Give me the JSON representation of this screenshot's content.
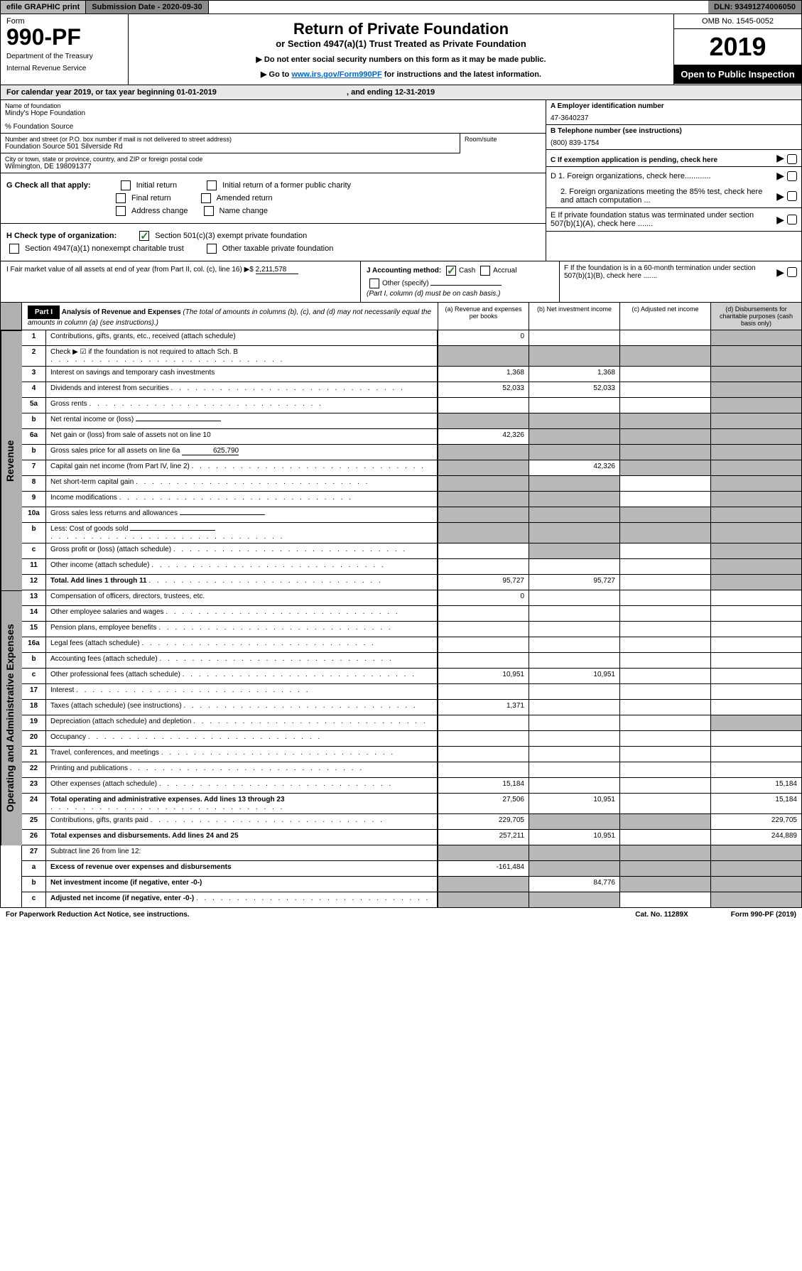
{
  "top_bar": {
    "efile": "efile GRAPHIC print",
    "submission": "Submission Date - 2020-09-30",
    "dln": "DLN: 93491274006050"
  },
  "header": {
    "form_word": "Form",
    "form_number": "990-PF",
    "dept": "Department of the Treasury",
    "irs": "Internal Revenue Service",
    "title": "Return of Private Foundation",
    "subtitle": "or Section 4947(a)(1) Trust Treated as Private Foundation",
    "note1": "▶ Do not enter social security numbers on this form as it may be made public.",
    "note2_pre": "▶ Go to ",
    "note2_link": "www.irs.gov/Form990PF",
    "note2_post": " for instructions and the latest information.",
    "omb": "OMB No. 1545-0052",
    "year": "2019",
    "open_public": "Open to Public Inspection"
  },
  "cal_year": {
    "text_pre": "For calendar year 2019, or tax year beginning 01-01-2019",
    "text_post": ", and ending 12-31-2019"
  },
  "foundation": {
    "name_label": "Name of foundation",
    "name": "Mindy's Hope Foundation",
    "care_of": "% Foundation Source",
    "addr_label": "Number and street (or P.O. box number if mail is not delivered to street address)",
    "addr": "Foundation Source 501 Silverside Rd",
    "room_label": "Room/suite",
    "city_label": "City or town, state or province, country, and ZIP or foreign postal code",
    "city": "Wilmington, DE  198091377",
    "ein_label": "A Employer identification number",
    "ein": "47-3640237",
    "phone_label": "B Telephone number (see instructions)",
    "phone": "(800) 839-1754",
    "exemption_label": "C If exemption application is pending, check here"
  },
  "checks": {
    "g_label": "G Check all that apply:",
    "initial": "Initial return",
    "initial_former": "Initial return of a former public charity",
    "final": "Final return",
    "amended": "Amended return",
    "addr_change": "Address change",
    "name_change": "Name change",
    "h_label": "H Check type of organization:",
    "sec501": "Section 501(c)(3) exempt private foundation",
    "sec4947": "Section 4947(a)(1) nonexempt charitable trust",
    "other_taxable": "Other taxable private foundation",
    "d1": "D 1. Foreign organizations, check here............",
    "d2": "2. Foreign organizations meeting the 85% test, check here and attach computation ...",
    "e_label": "E  If private foundation status was terminated under section 507(b)(1)(A), check here .......",
    "f_label": "F  If the foundation is in a 60-month termination under section 507(b)(1)(B), check here ......."
  },
  "lower": {
    "i_label": "I Fair market value of all assets at end of year (from Part II, col. (c), line 16) ▶$",
    "i_value": "2,211,578",
    "j_label": "J Accounting method:",
    "cash": "Cash",
    "accrual": "Accrual",
    "other": "Other (specify)",
    "j_note": "(Part I, column (d) must be on cash basis.)"
  },
  "part1": {
    "label": "Part I",
    "title": "Analysis of Revenue and Expenses",
    "subtitle": "(The total of amounts in columns (b), (c), and (d) may not necessarily equal the amounts in column (a) (see instructions).)",
    "col_a": "(a)   Revenue and expenses per books",
    "col_b": "(b)  Net investment income",
    "col_c": "(c)  Adjusted net income",
    "col_d": "(d)  Disbursements for charitable purposes (cash basis only)"
  },
  "vert": {
    "revenue": "Revenue",
    "expenses": "Operating and Administrative Expenses"
  },
  "rows": [
    {
      "n": "1",
      "label": "Contributions, gifts, grants, etc., received (attach schedule)",
      "a": "0",
      "b": "",
      "c": "",
      "d": "gray"
    },
    {
      "n": "2",
      "label": "Check ▶ ☑ if the foundation is not required to attach Sch. B",
      "a": "gray",
      "b": "gray",
      "c": "gray",
      "d": "gray",
      "dots": true
    },
    {
      "n": "3",
      "label": "Interest on savings and temporary cash investments",
      "a": "1,368",
      "b": "1,368",
      "c": "",
      "d": "gray"
    },
    {
      "n": "4",
      "label": "Dividends and interest from securities",
      "a": "52,033",
      "b": "52,033",
      "c": "",
      "d": "gray",
      "dots": true
    },
    {
      "n": "5a",
      "label": "Gross rents",
      "a": "",
      "b": "",
      "c": "",
      "d": "gray",
      "dots": true
    },
    {
      "n": "b",
      "label": "Net rental income or (loss)",
      "a": "gray",
      "b": "gray",
      "c": "gray",
      "d": "gray",
      "inline": true
    },
    {
      "n": "6a",
      "label": "Net gain or (loss) from sale of assets not on line 10",
      "a": "42,326",
      "b": "gray",
      "c": "gray",
      "d": "gray"
    },
    {
      "n": "b",
      "label": "Gross sales price for all assets on line 6a",
      "a": "gray",
      "b": "gray",
      "c": "gray",
      "d": "gray",
      "val": "625,790"
    },
    {
      "n": "7",
      "label": "Capital gain net income (from Part IV, line 2)",
      "a": "gray",
      "b": "42,326",
      "c": "gray",
      "d": "gray",
      "dots": true
    },
    {
      "n": "8",
      "label": "Net short-term capital gain",
      "a": "gray",
      "b": "gray",
      "c": "",
      "d": "gray",
      "dots": true
    },
    {
      "n": "9",
      "label": "Income modifications",
      "a": "gray",
      "b": "gray",
      "c": "",
      "d": "gray",
      "dots": true
    },
    {
      "n": "10a",
      "label": "Gross sales less returns and allowances",
      "a": "gray",
      "b": "gray",
      "c": "gray",
      "d": "gray",
      "inline": true
    },
    {
      "n": "b",
      "label": "Less: Cost of goods sold",
      "a": "gray",
      "b": "gray",
      "c": "gray",
      "d": "gray",
      "inline": true,
      "dots": true
    },
    {
      "n": "c",
      "label": "Gross profit or (loss) (attach schedule)",
      "a": "",
      "b": "gray",
      "c": "",
      "d": "gray",
      "dots": true
    },
    {
      "n": "11",
      "label": "Other income (attach schedule)",
      "a": "",
      "b": "",
      "c": "",
      "d": "gray",
      "dots": true
    },
    {
      "n": "12",
      "label": "Total. Add lines 1 through 11",
      "a": "95,727",
      "b": "95,727",
      "c": "",
      "d": "gray",
      "bold": true,
      "dots": true
    }
  ],
  "exp_rows": [
    {
      "n": "13",
      "label": "Compensation of officers, directors, trustees, etc.",
      "a": "0",
      "b": "",
      "c": "",
      "d": ""
    },
    {
      "n": "14",
      "label": "Other employee salaries and wages",
      "a": "",
      "b": "",
      "c": "",
      "d": "",
      "dots": true
    },
    {
      "n": "15",
      "label": "Pension plans, employee benefits",
      "a": "",
      "b": "",
      "c": "",
      "d": "",
      "dots": true
    },
    {
      "n": "16a",
      "label": "Legal fees (attach schedule)",
      "a": "",
      "b": "",
      "c": "",
      "d": "",
      "dots": true
    },
    {
      "n": "b",
      "label": "Accounting fees (attach schedule)",
      "a": "",
      "b": "",
      "c": "",
      "d": "",
      "dots": true
    },
    {
      "n": "c",
      "label": "Other professional fees (attach schedule)",
      "a": "10,951",
      "b": "10,951",
      "c": "",
      "d": "",
      "dots": true
    },
    {
      "n": "17",
      "label": "Interest",
      "a": "",
      "b": "",
      "c": "",
      "d": "",
      "dots": true
    },
    {
      "n": "18",
      "label": "Taxes (attach schedule) (see instructions)",
      "a": "1,371",
      "b": "",
      "c": "",
      "d": "",
      "dots": true
    },
    {
      "n": "19",
      "label": "Depreciation (attach schedule) and depletion",
      "a": "",
      "b": "",
      "c": "",
      "d": "gray",
      "dots": true
    },
    {
      "n": "20",
      "label": "Occupancy",
      "a": "",
      "b": "",
      "c": "",
      "d": "",
      "dots": true
    },
    {
      "n": "21",
      "label": "Travel, conferences, and meetings",
      "a": "",
      "b": "",
      "c": "",
      "d": "",
      "dots": true
    },
    {
      "n": "22",
      "label": "Printing and publications",
      "a": "",
      "b": "",
      "c": "",
      "d": "",
      "dots": true
    },
    {
      "n": "23",
      "label": "Other expenses (attach schedule)",
      "a": "15,184",
      "b": "",
      "c": "",
      "d": "15,184",
      "dots": true
    },
    {
      "n": "24",
      "label": "Total operating and administrative expenses. Add lines 13 through 23",
      "a": "27,506",
      "b": "10,951",
      "c": "",
      "d": "15,184",
      "bold": true,
      "dots": true
    },
    {
      "n": "25",
      "label": "Contributions, gifts, grants paid",
      "a": "229,705",
      "b": "gray",
      "c": "gray",
      "d": "229,705",
      "dots": true
    },
    {
      "n": "26",
      "label": "Total expenses and disbursements. Add lines 24 and 25",
      "a": "257,211",
      "b": "10,951",
      "c": "",
      "d": "244,889",
      "bold": true
    }
  ],
  "sub_rows": [
    {
      "n": "27",
      "label": "Subtract line 26 from line 12:",
      "a": "gray",
      "b": "gray",
      "c": "gray",
      "d": "gray"
    },
    {
      "n": "a",
      "label": "Excess of revenue over expenses and disbursements",
      "a": "-161,484",
      "b": "gray",
      "c": "gray",
      "d": "gray",
      "bold": true
    },
    {
      "n": "b",
      "label": "Net investment income (if negative, enter -0-)",
      "a": "gray",
      "b": "84,776",
      "c": "gray",
      "d": "gray",
      "bold": true
    },
    {
      "n": "c",
      "label": "Adjusted net income (if negative, enter -0-)",
      "a": "gray",
      "b": "gray",
      "c": "",
      "d": "gray",
      "bold": true,
      "dots": true
    }
  ],
  "footer": {
    "left": "For Paperwork Reduction Act Notice, see instructions.",
    "mid": "Cat. No. 11289X",
    "right": "Form 990-PF (2019)"
  }
}
